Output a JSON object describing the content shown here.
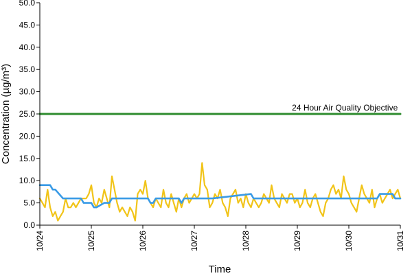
{
  "chart_data": {
    "type": "line",
    "title": "",
    "xlabel": "Time",
    "ylabel": "Concentration (µg/m³)",
    "ylim": [
      0,
      50
    ],
    "xlim": [
      0,
      7
    ],
    "x_tick_labels": [
      "10/24",
      "10/25",
      "10/26",
      "10/27",
      "10/28",
      "10/29",
      "10/30",
      "10/31"
    ],
    "y_tick_values": [
      0,
      5,
      10,
      15,
      20,
      25,
      30,
      35,
      40,
      45,
      50
    ],
    "y_tick_labels": [
      "0.0",
      "5.0",
      "10.0",
      "15.0",
      "20.0",
      "25.0",
      "30.0",
      "35.0",
      "40.0",
      "45.0",
      "50.0"
    ],
    "grid": false,
    "legend": "none",
    "annotations": [
      {
        "text": "24 Hour Air Quality Objective",
        "x": 6.95,
        "y": 25.8
      }
    ],
    "series": [
      {
        "name": "",
        "color": "#f1c419",
        "x": [
          0.0,
          0.05,
          0.1,
          0.15,
          0.2,
          0.25,
          0.3,
          0.35,
          0.4,
          0.45,
          0.5,
          0.55,
          0.6,
          0.65,
          0.7,
          0.75,
          0.8,
          0.85,
          0.9,
          0.95,
          1.0,
          1.05,
          1.1,
          1.15,
          1.2,
          1.25,
          1.3,
          1.35,
          1.4,
          1.45,
          1.5,
          1.55,
          1.6,
          1.65,
          1.7,
          1.75,
          1.8,
          1.85,
          1.9,
          1.95,
          2.0,
          2.05,
          2.1,
          2.15,
          2.2,
          2.25,
          2.3,
          2.35,
          2.4,
          2.45,
          2.5,
          2.55,
          2.6,
          2.65,
          2.7,
          2.75,
          2.8,
          2.85,
          2.9,
          2.95,
          3.0,
          3.05,
          3.1,
          3.15,
          3.2,
          3.25,
          3.3,
          3.35,
          3.4,
          3.45,
          3.5,
          3.55,
          3.6,
          3.65,
          3.7,
          3.75,
          3.8,
          3.85,
          3.9,
          3.95,
          4.0,
          4.05,
          4.1,
          4.15,
          4.2,
          4.25,
          4.3,
          4.35,
          4.4,
          4.45,
          4.5,
          4.55,
          4.6,
          4.65,
          4.7,
          4.75,
          4.8,
          4.85,
          4.9,
          4.95,
          5.0,
          5.05,
          5.1,
          5.15,
          5.2,
          5.25,
          5.3,
          5.35,
          5.4,
          5.45,
          5.5,
          5.55,
          5.6,
          5.65,
          5.7,
          5.75,
          5.8,
          5.85,
          5.9,
          5.95,
          6.0,
          6.05,
          6.1,
          6.15,
          6.2,
          6.25,
          6.3,
          6.35,
          6.4,
          6.45,
          6.5,
          6.55,
          6.6,
          6.65,
          6.7,
          6.75,
          6.8,
          6.85,
          6.9,
          6.95,
          7.0
        ],
        "y": [
          6,
          5,
          4,
          8,
          4,
          2,
          3,
          1,
          2,
          3,
          6,
          4,
          4,
          5,
          4,
          5,
          6,
          6,
          6,
          7,
          9,
          5,
          4,
          6,
          5,
          8,
          6,
          4,
          11,
          8,
          5,
          3,
          4,
          3,
          2,
          4,
          3,
          1,
          7,
          8,
          7,
          10,
          6,
          5,
          4,
          6,
          5,
          4,
          8,
          5,
          4,
          7,
          5,
          3,
          6,
          4,
          6,
          7,
          5,
          6,
          7,
          6,
          7,
          14,
          9,
          8,
          4,
          5,
          7,
          6,
          8,
          5,
          4,
          2,
          6,
          7,
          8,
          5,
          6,
          4,
          7,
          5,
          4,
          6,
          5,
          4,
          5,
          7,
          6,
          5,
          9,
          6,
          5,
          4,
          7,
          6,
          5,
          7,
          7,
          5,
          6,
          4,
          5,
          8,
          5,
          4,
          6,
          7,
          5,
          3,
          2,
          5,
          6,
          8,
          9,
          7,
          8,
          6,
          11,
          8,
          7,
          5,
          4,
          3,
          6,
          9,
          7,
          6,
          5,
          8,
          4,
          6,
          7,
          5,
          6,
          7,
          8,
          6,
          7,
          8,
          6
        ]
      },
      {
        "name": "",
        "color": "#3a9be6",
        "x": [
          0.0,
          0.2,
          0.25,
          0.3,
          0.45,
          0.8,
          0.85,
          1.0,
          1.05,
          1.1,
          1.25,
          1.35,
          1.4,
          2.1,
          2.15,
          2.2,
          2.25,
          2.3,
          2.7,
          2.75,
          2.8,
          3.3,
          3.35,
          4.1,
          4.15,
          4.3,
          6.55,
          6.6,
          6.85,
          6.9,
          7.0
        ],
        "y": [
          9,
          9,
          8,
          8,
          6,
          6,
          5,
          5,
          4,
          4,
          5,
          5,
          6,
          6,
          5,
          5,
          6,
          6,
          6,
          5,
          6,
          6,
          6,
          7,
          6,
          6,
          6,
          7,
          7,
          6,
          6
        ]
      },
      {
        "name": "",
        "color": "#2e8b2e",
        "x": [
          0,
          7
        ],
        "y": [
          25,
          25
        ]
      }
    ]
  }
}
